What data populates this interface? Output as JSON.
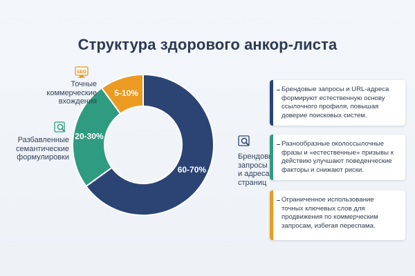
{
  "title": "Структура здорового анкор-листа",
  "colors": {
    "brand": "#2b4474",
    "semantic": "#2f9b80",
    "exact": "#eb9a22"
  },
  "chart_data": {
    "type": "pie",
    "donut": true,
    "title": "Структура здорового анкор-листа",
    "slices": [
      {
        "key": "brand",
        "label_lines": [
          "Брендовые",
          "запросы",
          "и адреса",
          "страниц"
        ],
        "value": 65,
        "value_label": "60-70%",
        "color": "#2b4474",
        "icon": "search-icon"
      },
      {
        "key": "semantic",
        "label_lines": [
          "Разбавленные",
          "семантические",
          "формулировки"
        ],
        "value": 25,
        "value_label": "20-30%",
        "color": "#2f9b80",
        "icon": "magnifier-doc-icon"
      },
      {
        "key": "exact",
        "label_lines": [
          "Точные",
          "коммерческие",
          "вхождения"
        ],
        "value": 10,
        "value_label": "5-10%",
        "color": "#eb9a22",
        "icon": "seo-icon"
      }
    ]
  },
  "seo_icon_text": "SEO",
  "cards": [
    {
      "color": "#2b4474",
      "text_lines": [
        "Брендовые запросы и URL-адреса",
        "формируют естественную основу",
        "ссылочного профиля, повышая",
        "доверие поисковых систем."
      ]
    },
    {
      "color": "#2f9b80",
      "text_lines": [
        "Разнообразные околоссылочные",
        "фразы и «естественные» призывы к",
        "действию улучшают поведенческие",
        "факторы и снижают риски."
      ]
    },
    {
      "color": "#eb9a22",
      "text_lines": [
        "Ограниченное использование",
        "точных ключевых слов для",
        "продвижения по коммерческим",
        "запросам, избегая переспама."
      ]
    }
  ]
}
